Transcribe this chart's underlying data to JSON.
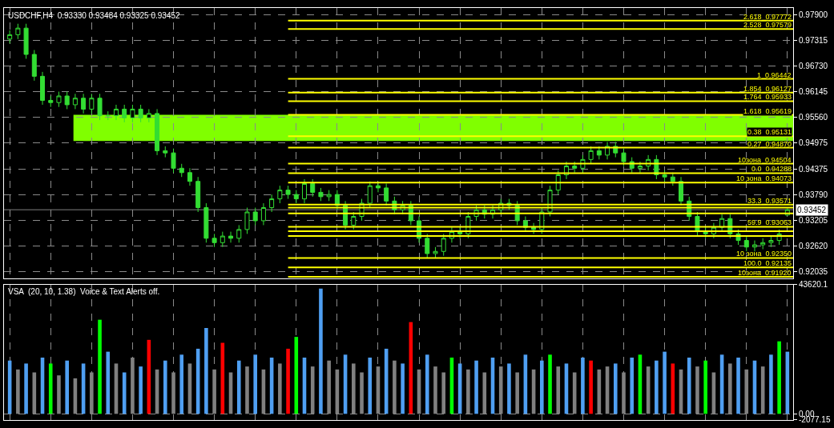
{
  "chart_data": [
    {
      "type": "candlestick",
      "title": "USDCHF,H4  0.93330 0.93484 0.93325 0.93452",
      "categories": [
        null,
        null,
        null,
        null,
        null,
        null,
        null,
        null,
        null,
        null,
        null,
        null,
        null,
        null,
        null,
        null,
        null,
        null,
        null,
        null,
        null,
        null,
        null,
        null,
        null,
        null,
        null,
        null,
        null,
        null,
        null,
        null,
        null,
        null,
        null,
        null,
        null,
        null,
        null,
        null,
        null,
        null,
        null,
        null,
        null,
        null,
        null,
        null,
        null,
        null,
        null,
        null,
        null,
        null,
        null,
        null,
        null,
        null,
        null,
        null,
        null,
        null,
        null,
        null,
        null,
        null,
        null,
        null,
        null,
        null,
        null,
        null,
        null,
        null,
        null,
        null,
        null,
        null,
        null,
        null,
        null,
        null,
        null,
        null,
        null,
        null,
        null,
        null,
        null,
        null,
        null,
        null,
        null,
        null,
        null,
        null
      ],
      "color": "#33dd33",
      "ohlc": [
        [
          0.9735,
          0.9755,
          0.9725,
          0.9745
        ],
        [
          0.9745,
          0.977,
          0.9735,
          0.976
        ],
        [
          0.976,
          0.977,
          0.969,
          0.97
        ],
        [
          0.97,
          0.971,
          0.964,
          0.965
        ],
        [
          0.965,
          0.966,
          0.9585,
          0.9595
        ],
        [
          0.9595,
          0.9605,
          0.958,
          0.959
        ],
        [
          0.959,
          0.9615,
          0.958,
          0.9605
        ],
        [
          0.9605,
          0.9615,
          0.9575,
          0.9585
        ],
        [
          0.9585,
          0.961,
          0.9575,
          0.96
        ],
        [
          0.96,
          0.961,
          0.9565,
          0.9575
        ],
        [
          0.9575,
          0.961,
          0.9565,
          0.96
        ],
        [
          0.96,
          0.961,
          0.955,
          0.956
        ],
        [
          0.956,
          0.957,
          0.955,
          0.956
        ],
        [
          0.956,
          0.9585,
          0.955,
          0.9575
        ],
        [
          0.9575,
          0.9585,
          0.9545,
          0.9555
        ],
        [
          0.9555,
          0.9585,
          0.9545,
          0.9575
        ],
        [
          0.9575,
          0.9585,
          0.9545,
          0.9555
        ],
        [
          0.9555,
          0.9575,
          0.9545,
          0.9565
        ],
        [
          0.9565,
          0.9575,
          0.947,
          0.948
        ],
        [
          0.948,
          0.949,
          0.9465,
          0.9475
        ],
        [
          0.9475,
          0.9485,
          0.943,
          0.944
        ],
        [
          0.944,
          0.945,
          0.942,
          0.943
        ],
        [
          0.943,
          0.944,
          0.94,
          0.941
        ],
        [
          0.941,
          0.942,
          0.934,
          0.935
        ],
        [
          0.935,
          0.936,
          0.927,
          0.928
        ],
        [
          0.928,
          0.929,
          0.926,
          0.927
        ],
        [
          0.927,
          0.9295,
          0.926,
          0.9285
        ],
        [
          0.9285,
          0.9295,
          0.927,
          0.928
        ],
        [
          0.928,
          0.931,
          0.927,
          0.93
        ],
        [
          0.93,
          0.935,
          0.929,
          0.934
        ],
        [
          0.934,
          0.935,
          0.931,
          0.932
        ],
        [
          0.932,
          0.936,
          0.931,
          0.935
        ],
        [
          0.935,
          0.938,
          0.934,
          0.937
        ],
        [
          0.937,
          0.94,
          0.936,
          0.939
        ],
        [
          0.939,
          0.94,
          0.937,
          0.938
        ],
        [
          0.938,
          0.939,
          0.936,
          0.937
        ],
        [
          0.937,
          0.9415,
          0.936,
          0.9405
        ],
        [
          0.9405,
          0.9415,
          0.9375,
          0.9385
        ],
        [
          0.9385,
          0.9395,
          0.9365,
          0.9375
        ],
        [
          0.9375,
          0.939,
          0.9365,
          0.938
        ],
        [
          0.938,
          0.939,
          0.9345,
          0.9355
        ],
        [
          0.9355,
          0.9365,
          0.93,
          0.931
        ],
        [
          0.931,
          0.934,
          0.93,
          0.933
        ],
        [
          0.933,
          0.937,
          0.932,
          0.936
        ],
        [
          0.936,
          0.941,
          0.935,
          0.94
        ],
        [
          0.94,
          0.941,
          0.9385,
          0.9395
        ],
        [
          0.9395,
          0.9405,
          0.9355,
          0.9365
        ],
        [
          0.9365,
          0.9375,
          0.9335,
          0.9345
        ],
        [
          0.9345,
          0.9365,
          0.9335,
          0.9355
        ],
        [
          0.9355,
          0.9365,
          0.931,
          0.932
        ],
        [
          0.932,
          0.933,
          0.927,
          0.928
        ],
        [
          0.928,
          0.929,
          0.9235,
          0.9245
        ],
        [
          0.9245,
          0.926,
          0.9235,
          0.925
        ],
        [
          0.925,
          0.929,
          0.924,
          0.928
        ],
        [
          0.928,
          0.9305,
          0.927,
          0.9295
        ],
        [
          0.9295,
          0.9305,
          0.928,
          0.929
        ],
        [
          0.929,
          0.934,
          0.928,
          0.933
        ],
        [
          0.933,
          0.9355,
          0.932,
          0.9345
        ],
        [
          0.9345,
          0.9355,
          0.9325,
          0.9335
        ],
        [
          0.9335,
          0.9355,
          0.9325,
          0.9345
        ],
        [
          0.9345,
          0.937,
          0.9335,
          0.936
        ],
        [
          0.936,
          0.937,
          0.9345,
          0.9355
        ],
        [
          0.9355,
          0.9365,
          0.931,
          0.932
        ],
        [
          0.932,
          0.933,
          0.9295,
          0.9305
        ],
        [
          0.9305,
          0.9315,
          0.929,
          0.93
        ],
        [
          0.93,
          0.935,
          0.929,
          0.934
        ],
        [
          0.934,
          0.94,
          0.933,
          0.939
        ],
        [
          0.939,
          0.9435,
          0.938,
          0.9425
        ],
        [
          0.9425,
          0.9455,
          0.9415,
          0.9445
        ],
        [
          0.9445,
          0.9455,
          0.943,
          0.944
        ],
        [
          0.944,
          0.947,
          0.943,
          0.946
        ],
        [
          0.946,
          0.949,
          0.945,
          0.948
        ],
        [
          0.948,
          0.949,
          0.946,
          0.947
        ],
        [
          0.947,
          0.95,
          0.946,
          0.949
        ],
        [
          0.949,
          0.95,
          0.9465,
          0.9475
        ],
        [
          0.9475,
          0.9485,
          0.9445,
          0.9455
        ],
        [
          0.9455,
          0.9465,
          0.943,
          0.944
        ],
        [
          0.944,
          0.9455,
          0.943,
          0.9445
        ],
        [
          0.9445,
          0.947,
          0.9435,
          0.946
        ],
        [
          0.946,
          0.947,
          0.9415,
          0.9425
        ],
        [
          0.9425,
          0.9435,
          0.941,
          0.942
        ],
        [
          0.942,
          0.943,
          0.94,
          0.941
        ],
        [
          0.941,
          0.942,
          0.9355,
          0.9365
        ],
        [
          0.9365,
          0.9375,
          0.932,
          0.933
        ],
        [
          0.933,
          0.934,
          0.9285,
          0.9295
        ],
        [
          0.9295,
          0.9305,
          0.928,
          0.929
        ],
        [
          0.929,
          0.9315,
          0.928,
          0.9305
        ],
        [
          0.9305,
          0.9335,
          0.9295,
          0.9325
        ],
        [
          0.9325,
          0.9335,
          0.928,
          0.929
        ],
        [
          0.929,
          0.93,
          0.9265,
          0.9275
        ],
        [
          0.9275,
          0.9285,
          0.925,
          0.926
        ],
        [
          0.926,
          0.9275,
          0.925,
          0.9265
        ],
        [
          0.9265,
          0.928,
          0.9255,
          0.927
        ],
        [
          0.927,
          0.9285,
          0.926,
          0.9275
        ],
        [
          0.9275,
          0.93,
          0.9265,
          0.929
        ],
        [
          0.9333,
          0.93484,
          0.93325,
          0.93452
        ]
      ],
      "ylim": [
        0.9188,
        0.9806
      ],
      "yticks": [
        {
          "value": 0.979,
          "label": "0.97900"
        },
        {
          "value": 0.97315,
          "label": "0.97315"
        },
        {
          "value": 0.9673,
          "label": "0.96730"
        },
        {
          "value": 0.96145,
          "label": "0.96145"
        },
        {
          "value": 0.9556,
          "label": "0.95560"
        },
        {
          "value": 0.94975,
          "label": "0.94975"
        },
        {
          "value": 0.94375,
          "label": "0.94375"
        },
        {
          "value": 0.9379,
          "label": "0.93790"
        },
        {
          "value": 0.93205,
          "label": "0.93205"
        },
        {
          "value": 0.9262,
          "label": "0.92620"
        },
        {
          "value": 0.92035,
          "label": "0.92035"
        }
      ],
      "bands": [
        {
          "axis": "y",
          "from": 0.9502,
          "to": 0.9562,
          "color": "#80ff00"
        }
      ],
      "ref_lines": [
        {
          "axis": "y",
          "value": 0.97772,
          "label": "2.618  0.97772"
        },
        {
          "axis": "y",
          "value": 0.97579,
          "label": "2.528  0.97579"
        },
        {
          "axis": "y",
          "value": 0.96442,
          "label": "1  0.96442"
        },
        {
          "axis": "y",
          "value": 0.96127,
          "label": "1.854  0.96127"
        },
        {
          "axis": "y",
          "value": 0.95933,
          "label": "1.764  0.95933"
        },
        {
          "axis": "y",
          "value": 0.95619,
          "label": "1.618  0.95619"
        },
        {
          "axis": "y",
          "value": 0.95131,
          "label": "0.38  0.95131"
        },
        {
          "axis": "y",
          "value": 0.9487,
          "label": "0.27  0.94870"
        },
        {
          "axis": "y",
          "value": 0.94504,
          "label": "10зона  0.94504"
        },
        {
          "axis": "y",
          "value": 0.94288,
          "label": "0.0  0.94288"
        },
        {
          "axis": "y",
          "value": 0.94073,
          "label": "10 зона  0.94073"
        },
        {
          "axis": "y",
          "value": 0.93571,
          "label": "33.3  0.93571"
        },
        {
          "axis": "y",
          "value": 0.935,
          "label": null
        },
        {
          "axis": "y",
          "value": 0.9337,
          "label": null
        },
        {
          "axis": "y",
          "value": 0.93063,
          "label": "59.9  0.93063"
        },
        {
          "axis": "y",
          "value": 0.9296,
          "label": null
        },
        {
          "axis": "y",
          "value": 0.9285,
          "label": null
        },
        {
          "axis": "y",
          "value": 0.9235,
          "label": "10 зона  0.92350"
        },
        {
          "axis": "y",
          "value": 0.92135,
          "label": "100.0  0.92135"
        },
        {
          "axis": "y",
          "value": 0.9192,
          "label": "10зона  0.91920"
        },
        {
          "axis": "y",
          "value": 0.93452,
          "label": "0.93452",
          "color": "#808080"
        }
      ],
      "grid": true,
      "tick_labels": "y"
    },
    {
      "type": "bar",
      "title": "VSA  (20, 10, 1.38)  Voice & Text Alerts off.",
      "categories": [
        null,
        null,
        null,
        null,
        null,
        null,
        null,
        null,
        null,
        null,
        null,
        null,
        null,
        null,
        null,
        null,
        null,
        null,
        null,
        null,
        null,
        null,
        null,
        null,
        null,
        null,
        null,
        null,
        null,
        null,
        null,
        null,
        null,
        null,
        null,
        null,
        null,
        null,
        null,
        null,
        null,
        null,
        null,
        null,
        null,
        null,
        null,
        null,
        null,
        null,
        null,
        null,
        null,
        null,
        null,
        null,
        null,
        null,
        null,
        null,
        null,
        null,
        null,
        null,
        null,
        null,
        null,
        null,
        null,
        null,
        null,
        null,
        null,
        null,
        null,
        null,
        null,
        null,
        null,
        null,
        null,
        null,
        null,
        null,
        null,
        null,
        null,
        null,
        null,
        null,
        null,
        null,
        null,
        null,
        null,
        null
      ],
      "values": [
        18000,
        15000,
        17000,
        14000,
        19000,
        17000,
        13000,
        18000,
        12000,
        17000,
        14000,
        31800,
        21000,
        17000,
        14000,
        19000,
        16000,
        25000,
        15000,
        18000,
        14000,
        20000,
        17000,
        22000,
        29000,
        15000,
        24000,
        14000,
        18000,
        16000,
        20000,
        15000,
        19000,
        17000,
        22000,
        26000,
        19000,
        16000,
        42300,
        18000,
        15000,
        20000,
        17000,
        14000,
        19000,
        16000,
        22000,
        18000,
        17000,
        31000,
        15000,
        20000,
        16000,
        14000,
        19000,
        17000,
        15000,
        18000,
        14000,
        19000,
        16000,
        17000,
        14000,
        20000,
        15000,
        18000,
        20000,
        16000,
        17000,
        14000,
        19000,
        18000,
        15000,
        16000,
        17000,
        14000,
        19000,
        20000,
        16000,
        18000,
        21000,
        17000,
        15000,
        19000,
        16000,
        18000,
        14000,
        20000,
        17000,
        19000,
        15000,
        18000,
        16000,
        20000,
        24500,
        21000
      ],
      "colors": [
        "#4f9ff2",
        "#808080",
        "#4f9ff2",
        "#808080",
        "#4f9ff2",
        "#00ff00",
        "#808080",
        "#4f9ff2",
        "#808080",
        "#4f9ff2",
        "#808080",
        "#00ff00",
        "#4f9ff2",
        "#808080",
        "#4f9ff2",
        "#808080",
        "#4f9ff2",
        "#ff0000",
        "#808080",
        "#4f9ff2",
        "#808080",
        "#4f9ff2",
        "#808080",
        "#4f9ff2",
        "#4f9ff2",
        "#808080",
        "#ff0000",
        "#808080",
        "#4f9ff2",
        "#808080",
        "#4f9ff2",
        "#808080",
        "#4f9ff2",
        "#808080",
        "#ff0000",
        "#00ff00",
        "#4f9ff2",
        "#808080",
        "#4f9ff2",
        "#808080",
        "#808080",
        "#4f9ff2",
        "#808080",
        "#808080",
        "#4f9ff2",
        "#808080",
        "#4f9ff2",
        "#808080",
        "#4f9ff2",
        "#ff0000",
        "#808080",
        "#4f9ff2",
        "#808080",
        "#808080",
        "#00ff00",
        "#4f9ff2",
        "#808080",
        "#4f9ff2",
        "#808080",
        "#4f9ff2",
        "#808080",
        "#4f9ff2",
        "#808080",
        "#4f9ff2",
        "#808080",
        "#4f9ff2",
        "#00ff00",
        "#808080",
        "#4f9ff2",
        "#808080",
        "#4f9ff2",
        "#ff0000",
        "#808080",
        "#808080",
        "#4f9ff2",
        "#808080",
        "#4f9ff2",
        "#00ff00",
        "#808080",
        "#4f9ff2",
        "#4f9ff2",
        "#ff0000",
        "#808080",
        "#4f9ff2",
        "#808080",
        "#00ff00",
        "#808080",
        "#4f9ff2",
        "#808080",
        "#4f9ff2",
        "#808080",
        "#4f9ff2",
        "#808080",
        "#4f9ff2",
        "#00ff00",
        "#4f9ff2"
      ],
      "ylim": [
        -2077.15,
        43620.1
      ],
      "yticks": [
        {
          "value": 43620.1,
          "label": "43620.1"
        },
        {
          "value": 0,
          "label": "0.00"
        },
        {
          "value": -2077.15,
          "label": "-2077.15"
        }
      ],
      "grid": true,
      "tick_labels": "y"
    }
  ]
}
